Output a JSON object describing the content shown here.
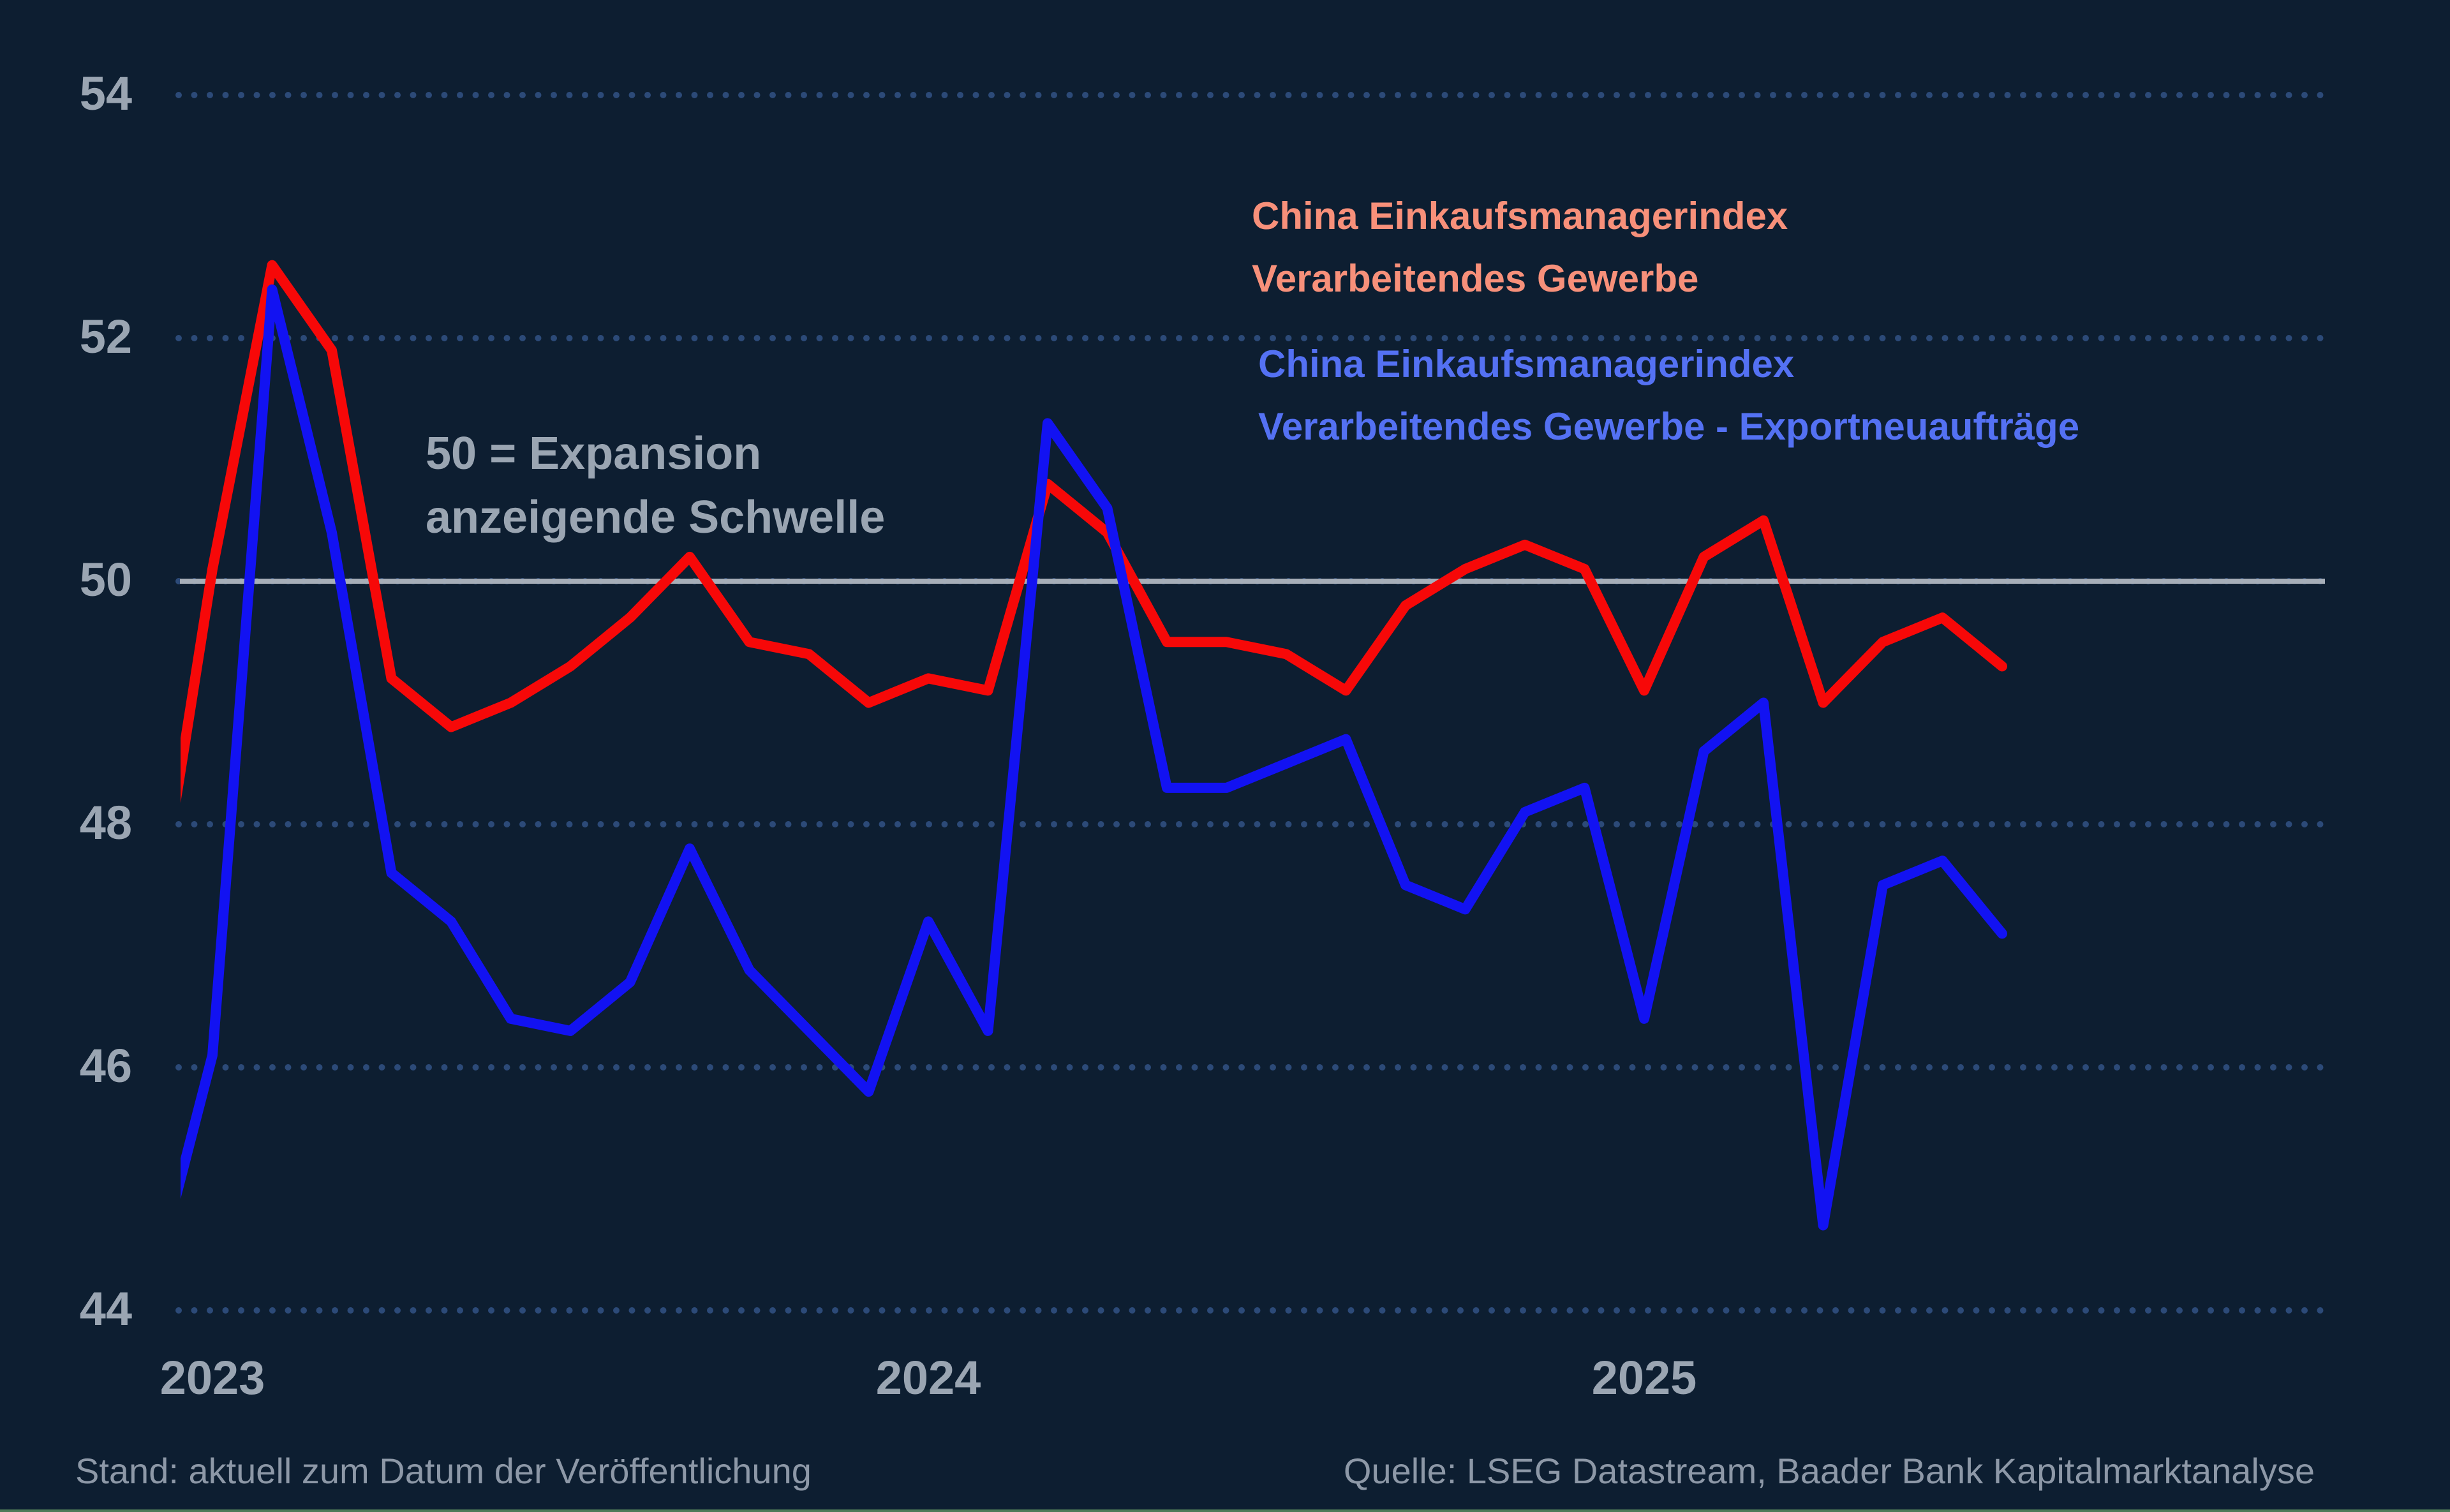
{
  "chart_data": {
    "type": "line",
    "title": "",
    "x": [
      "2022-12",
      "2023-01",
      "2023-02",
      "2023-03",
      "2023-04",
      "2023-05",
      "2023-06",
      "2023-07",
      "2023-08",
      "2023-09",
      "2023-10",
      "2023-11",
      "2023-12",
      "2024-01",
      "2024-02",
      "2024-03",
      "2024-04",
      "2024-05",
      "2024-06",
      "2024-07",
      "2024-08",
      "2024-09",
      "2024-10",
      "2024-11",
      "2024-12",
      "2025-01",
      "2025-02",
      "2025-03",
      "2025-04",
      "2025-05",
      "2025-06",
      "2025-07"
    ],
    "series": [
      {
        "name": "China Einkaufsmanagerindex Verarbeitendes Gewerbe",
        "color": "#f70808",
        "values": [
          47.0,
          50.1,
          52.6,
          51.9,
          49.2,
          48.8,
          49.0,
          49.3,
          49.7,
          50.2,
          49.5,
          49.4,
          49.0,
          49.2,
          49.1,
          50.8,
          50.4,
          49.5,
          49.5,
          49.4,
          49.1,
          49.8,
          50.1,
          50.3,
          50.1,
          49.1,
          50.2,
          50.5,
          49.0,
          49.5,
          49.7,
          49.3
        ]
      },
      {
        "name": "China Einkaufsmanagerindex Verarbeitendes Gewerbe - Exportneuaufträge",
        "color": "#1212f2",
        "values": [
          44.2,
          46.1,
          52.4,
          50.4,
          47.6,
          47.2,
          46.4,
          46.3,
          46.7,
          47.8,
          46.8,
          46.3,
          45.8,
          47.2,
          46.3,
          51.3,
          50.6,
          48.3,
          48.3,
          48.5,
          48.7,
          47.5,
          47.3,
          48.1,
          48.3,
          46.4,
          48.6,
          49.0,
          44.7,
          47.5,
          47.7,
          47.1
        ]
      }
    ],
    "yticks": [
      54,
      52,
      50,
      48,
      46,
      44
    ],
    "ylim": [
      43.7,
      54.3
    ],
    "xticks": [
      {
        "label": "2023",
        "month": "2023-01"
      },
      {
        "label": "2024",
        "month": "2024-01"
      },
      {
        "label": "2025",
        "month": "2025-01"
      }
    ],
    "threshold": {
      "value": 50
    },
    "grid": "dotted-horizontal",
    "legend_position": "top-right"
  },
  "legend": {
    "series1": {
      "line1": "China Einkaufsmanagerindex",
      "line2": "Verarbeitendes Gewerbe",
      "color": "#f7907a"
    },
    "series2": {
      "line1": "China Einkaufsmanagerindex",
      "line2": "Verarbeitendes Gewerbe - Exportneuaufträge",
      "color": "#5471f3"
    }
  },
  "annotation": {
    "line1": "50 = Expansion",
    "line2": "anzeigende Schwelle"
  },
  "footer": {
    "left": "Stand: aktuell zum Datum der Veröffentlichung",
    "right": "Quelle: LSEG Datastream, Baader Bank Kapitalmarktanalyse"
  },
  "colors": {
    "background": "#0d1e31",
    "grid_dots": "#2c4a78",
    "threshold_line": "#a6aeb8",
    "axis_text": "#9aa5b2",
    "footer_text": "#8d98a7",
    "bottom_accent": "#4e7a58"
  }
}
